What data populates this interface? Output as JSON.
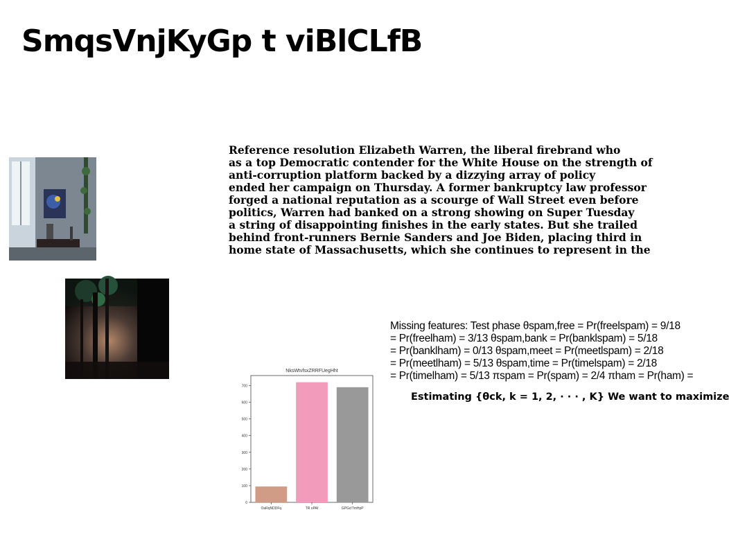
{
  "page": {
    "title": "SmqsVnjKyGp t viBlCLfB"
  },
  "paragraph": {
    "lines": [
      "Reference resolution Elizabeth Warren, the liberal firebrand who",
      "as a top Democratic contender for the White House on the strength of",
      "anti-corruption platform backed by a dizzying array of policy",
      "ended her campaign on Thursday. A former bankruptcy law professor",
      "forged a national reputation as a scourge of Wall Street even before",
      "politics, Warren had banked on a strong showing on Super Tuesday",
      "a string of disappointing finishes in the early states. But she trailed",
      "behind front-runners Bernie Sanders and Joe Biden, placing third in",
      "home state of Massachusetts, which she continues to represent in the"
    ]
  },
  "math": {
    "lines": [
      "Missing features: Test phase θspam,free = Pr(freelspam) = 9/18",
      "= Pr(freelham) = 3/13 θspam,bank = Pr(banklspam) = 5/18",
      "= Pr(banklham) = 0/13 θspam,meet = Pr(meetlspam) = 2/18",
      "= Pr(meetlham) = 5/13 θspam,time = Pr(timelspam) = 2/18",
      "= Pr(timelham) = 5/13 πspam = Pr(spam) = 2/4 πham = Pr(ham) ="
    ]
  },
  "heading2": {
    "text": "Estimating {θck, k = 1, 2, · · · , K} We want to maximize"
  },
  "chart_data": {
    "type": "bar",
    "title": "NksWtvfsxZRRFUegHht",
    "categories": [
      "OaRqNDDFq",
      "TR oPAf",
      "GPGcITmHpP"
    ],
    "values": [
      95,
      720,
      690
    ],
    "colors": [
      "#d09c86",
      "#f39bbb",
      "#999999"
    ],
    "xlabel": "",
    "ylabel": "",
    "ylim": [
      0,
      760
    ],
    "yticks": [
      0,
      100,
      200,
      300,
      400,
      500,
      600,
      700
    ],
    "grid": false
  }
}
